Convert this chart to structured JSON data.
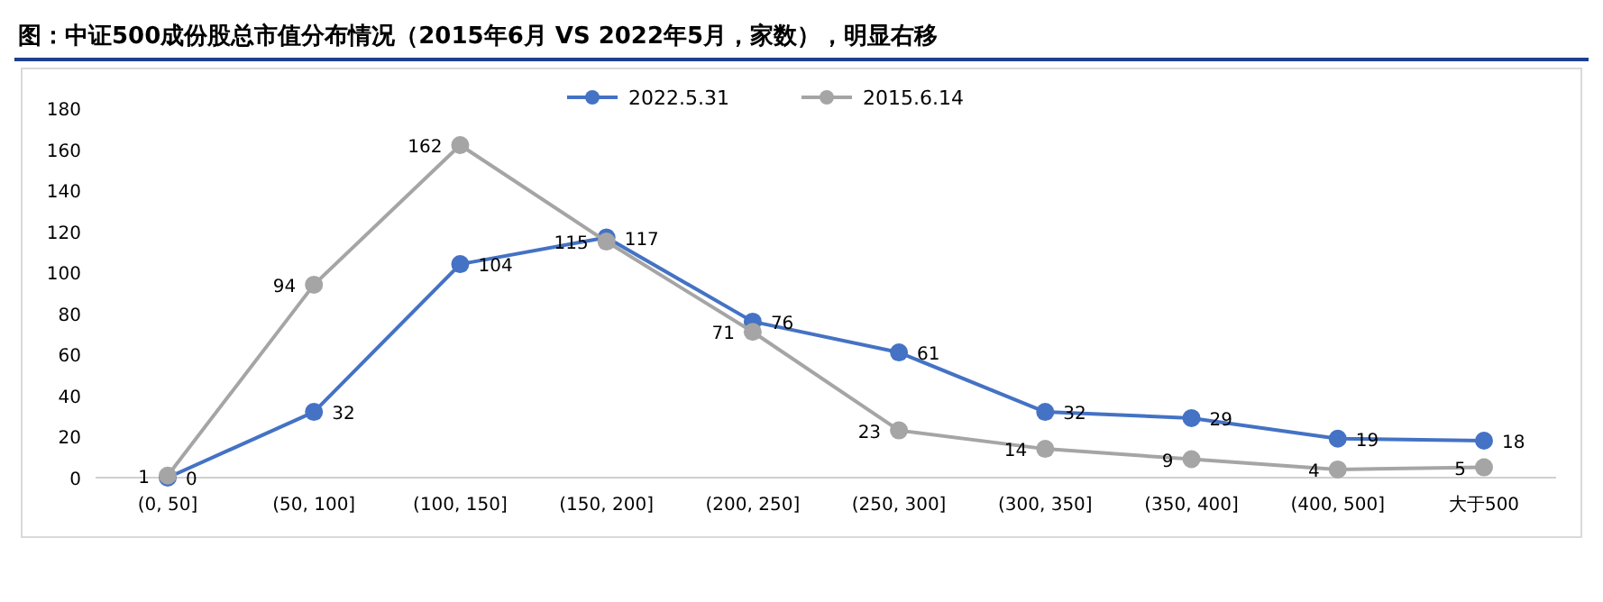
{
  "chart_data": {
    "type": "line",
    "title": "图：中证500成份股总市值分布情况（2015年6月 VS 2022年5月，家数），明显右移",
    "categories": [
      "(0, 50]",
      "(50, 100]",
      "(100, 150]",
      "(150, 200]",
      "(200, 250]",
      "(250, 300]",
      "(300, 350]",
      "(350, 400]",
      "(400, 500]",
      "大于500"
    ],
    "series": [
      {
        "name": "2022.5.31",
        "color": "#4472c4",
        "values": [
          0,
          32,
          104,
          117,
          76,
          61,
          32,
          29,
          19,
          18
        ]
      },
      {
        "name": "2015.6.14",
        "color": "#a5a5a5",
        "values": [
          1,
          94,
          162,
          115,
          71,
          23,
          14,
          9,
          4,
          5
        ]
      }
    ],
    "ylim": [
      0,
      180
    ],
    "yticks": [
      0,
      20,
      40,
      60,
      80,
      100,
      120,
      140,
      160,
      180
    ],
    "grid": false,
    "legend": "top",
    "marker": "circle",
    "line_style": "solid",
    "data_labels": true
  }
}
